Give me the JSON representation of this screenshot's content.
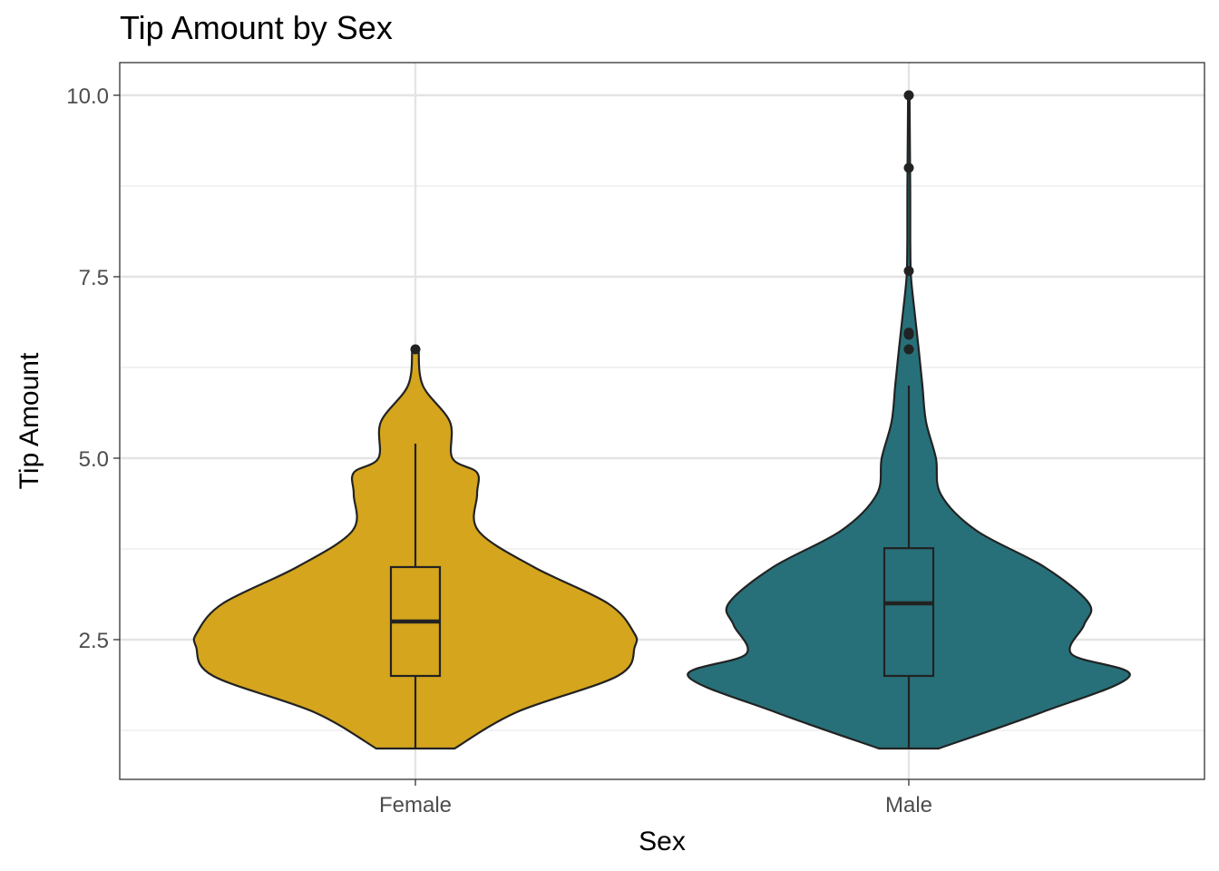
{
  "chart_data": {
    "type": "violin",
    "title": "Tip Amount by Sex",
    "xlabel": "Sex",
    "ylabel": "Tip Amount",
    "ylim": [
      0.6,
      10.4
    ],
    "yticks": [
      2.5,
      5.0,
      7.5,
      10.0
    ],
    "ytick_labels": [
      "2.5",
      "5.0",
      "7.5",
      "10.0"
    ],
    "grid": true,
    "categories": [
      "Female",
      "Male"
    ],
    "series": [
      {
        "category": "Female",
        "color": "#D4A51D",
        "violin_profile": [
          [
            1.0,
            0.159
          ],
          [
            1.5,
            0.41
          ],
          [
            2.0,
            0.82
          ],
          [
            2.4,
            0.889
          ],
          [
            2.6,
            0.885
          ],
          [
            3.0,
            0.78
          ],
          [
            3.5,
            0.48
          ],
          [
            4.0,
            0.255
          ],
          [
            4.5,
            0.25
          ],
          [
            4.8,
            0.25
          ],
          [
            5.0,
            0.15
          ],
          [
            5.5,
            0.14
          ],
          [
            6.0,
            0.03
          ],
          [
            6.5,
            0.013
          ]
        ],
        "box": {
          "q1": 2.0,
          "median": 2.75,
          "q3": 3.5,
          "whisker_low": 1.0,
          "whisker_high": 5.2
        },
        "outliers": [
          6.5
        ]
      },
      {
        "category": "Male",
        "color": "#277079",
        "violin_profile": [
          [
            1.0,
            0.121
          ],
          [
            1.5,
            0.54
          ],
          [
            2.0,
            0.895
          ],
          [
            2.3,
            0.66
          ],
          [
            2.7,
            0.71
          ],
          [
            3.0,
            0.73
          ],
          [
            3.5,
            0.55
          ],
          [
            4.0,
            0.275
          ],
          [
            4.5,
            0.13
          ],
          [
            5.0,
            0.11
          ],
          [
            5.5,
            0.07
          ],
          [
            6.0,
            0.055
          ],
          [
            6.5,
            0.04
          ],
          [
            7.0,
            0.024
          ],
          [
            7.5,
            0.009
          ],
          [
            8.0,
            0.006
          ],
          [
            8.5,
            0.006
          ],
          [
            9.0,
            0.005
          ],
          [
            9.5,
            0.004
          ],
          [
            10.0,
            0.003
          ]
        ],
        "box": {
          "q1": 2.0,
          "median": 3.0,
          "q3": 3.76,
          "whisker_low": 1.0,
          "whisker_high": 6.0
        },
        "outliers": [
          6.5,
          6.7,
          6.73,
          7.58,
          9.0,
          10.0
        ]
      }
    ]
  }
}
